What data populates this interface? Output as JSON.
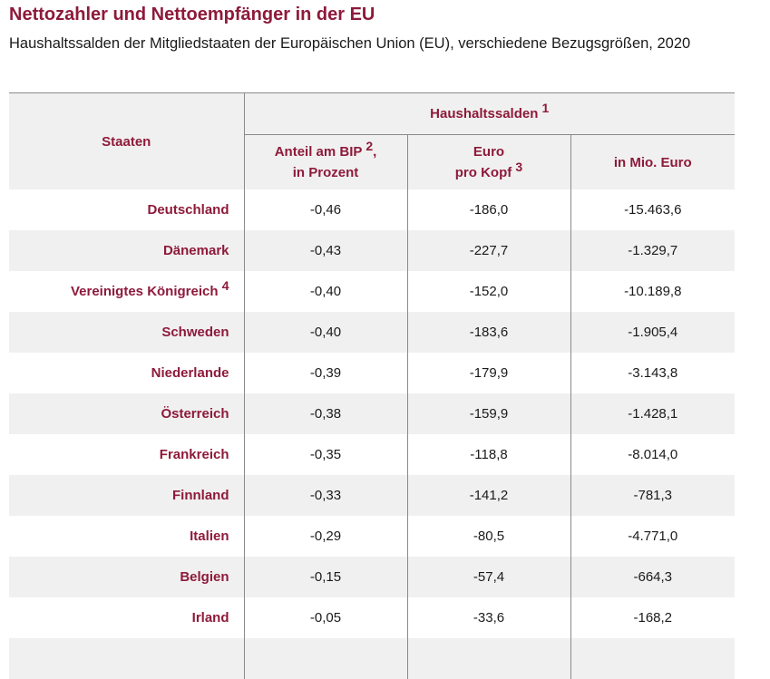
{
  "title": "Nettozahler und Nettoempfänger in der EU",
  "subtitle": "Haushaltssalden der Mitgliedstaaten der Europäischen Union (EU), verschiedene Bezugsgrößen, 2020",
  "table": {
    "header": {
      "staaten": "Staaten",
      "group": "Haushaltssalden",
      "group_note": "1",
      "col1_line1": "Anteil am BIP",
      "col1_note": "2",
      "col1_comma": ",",
      "col1_line2": "in Prozent",
      "col2_line1": "Euro",
      "col2_line2": "pro Kopf",
      "col2_note": "3",
      "col3": "in Mio. Euro"
    },
    "rows": [
      {
        "country": "Deutschland",
        "note": "",
        "bip": "-0,46",
        "kopf": "-186,0",
        "mio": "-15.463,6"
      },
      {
        "country": "Dänemark",
        "note": "",
        "bip": "-0,43",
        "kopf": "-227,7",
        "mio": "-1.329,7"
      },
      {
        "country": "Vereinigtes Königreich",
        "note": "4",
        "bip": "-0,40",
        "kopf": "-152,0",
        "mio": "-10.189,8"
      },
      {
        "country": "Schweden",
        "note": "",
        "bip": "-0,40",
        "kopf": "-183,6",
        "mio": "-1.905,4"
      },
      {
        "country": "Niederlande",
        "note": "",
        "bip": "-0,39",
        "kopf": "-179,9",
        "mio": "-3.143,8"
      },
      {
        "country": "Österreich",
        "note": "",
        "bip": "-0,38",
        "kopf": "-159,9",
        "mio": "-1.428,1"
      },
      {
        "country": "Frankreich",
        "note": "",
        "bip": "-0,35",
        "kopf": "-118,8",
        "mio": "-8.014,0"
      },
      {
        "country": "Finnland",
        "note": "",
        "bip": "-0,33",
        "kopf": "-141,2",
        "mio": "-781,3"
      },
      {
        "country": "Italien",
        "note": "",
        "bip": "-0,29",
        "kopf": "-80,5",
        "mio": "-4.771,0"
      },
      {
        "country": "Belgien",
        "note": "",
        "bip": "-0,15",
        "kopf": "-57,4",
        "mio": "-664,3"
      },
      {
        "country": "Irland",
        "note": "",
        "bip": "-0,05",
        "kopf": "-33,6",
        "mio": "-168,2"
      }
    ]
  }
}
